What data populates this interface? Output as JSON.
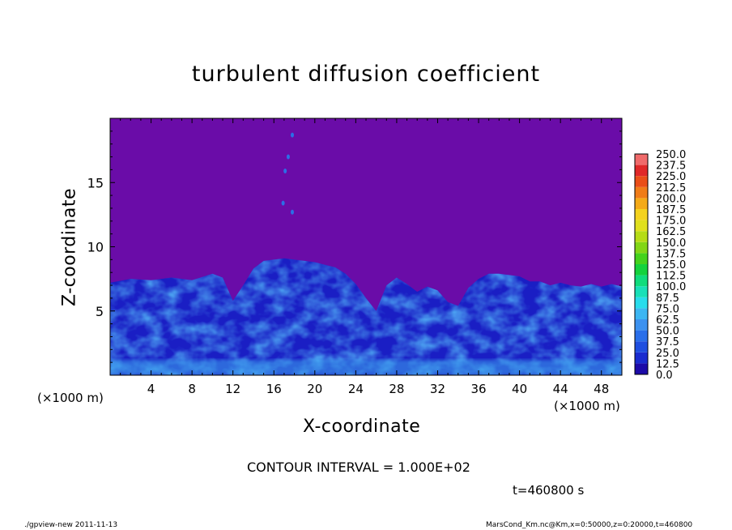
{
  "chart_data": {
    "type": "heatmap",
    "title": "turbulent diffusion coefficient",
    "xlabel": "X-coordinate",
    "ylabel": "Z-coordinate",
    "xunit": "(×1000 m)",
    "xunit_right": "(×1000 m)",
    "xlim": [
      0,
      50
    ],
    "ylim": [
      0,
      20
    ],
    "xticks": [
      4,
      8,
      12,
      16,
      20,
      24,
      28,
      32,
      36,
      40,
      44,
      48
    ],
    "yticks": [
      5,
      10,
      15
    ],
    "contour_interval": "CONTOUR INTERVAL = 1.000E+02",
    "time_label": "t=460800 s",
    "colorbar": {
      "levels": [
        "0.0",
        "12.5",
        "25.0",
        "37.5",
        "50.0",
        "62.5",
        "75.0",
        "87.5",
        "100.0",
        "112.5",
        "125.0",
        "137.5",
        "150.0",
        "162.5",
        "175.0",
        "187.5",
        "200.0",
        "212.5",
        "225.0",
        "237.5",
        "250.0"
      ],
      "colors": [
        "#1d0ba8",
        "#1a2ccf",
        "#1f4fe0",
        "#2a6fea",
        "#3c92f0",
        "#3cb6f2",
        "#28dcec",
        "#18e0b8",
        "#10dc7c",
        "#14d23c",
        "#44d21c",
        "#82d616",
        "#b6dc16",
        "#e0e01e",
        "#f4d21e",
        "#f4aa18",
        "#f07c18",
        "#ea4e18",
        "#e02828",
        "#f06a6a"
      ],
      "background_color": "#6a0ca8"
    },
    "boundary_layer_top_km": [
      [
        0,
        7.2
      ],
      [
        2,
        7.5
      ],
      [
        4,
        7.4
      ],
      [
        6,
        7.6
      ],
      [
        8,
        7.4
      ],
      [
        10,
        7.9
      ],
      [
        11,
        7.6
      ],
      [
        12,
        5.8
      ],
      [
        13,
        7.0
      ],
      [
        14,
        8.3
      ],
      [
        15,
        8.9
      ],
      [
        16,
        9.0
      ],
      [
        17,
        9.1
      ],
      [
        18,
        9.0
      ],
      [
        19,
        8.9
      ],
      [
        20,
        8.8
      ],
      [
        21,
        8.6
      ],
      [
        22,
        8.4
      ],
      [
        23,
        7.9
      ],
      [
        24,
        7.1
      ],
      [
        25,
        6.0
      ],
      [
        26,
        5.0
      ],
      [
        27,
        7.0
      ],
      [
        28,
        7.6
      ],
      [
        29,
        7.1
      ],
      [
        30,
        6.5
      ],
      [
        31,
        6.9
      ],
      [
        32,
        6.6
      ],
      [
        33,
        5.7
      ],
      [
        34,
        5.4
      ],
      [
        35,
        6.8
      ],
      [
        36,
        7.5
      ],
      [
        37,
        7.9
      ],
      [
        38,
        7.9
      ],
      [
        39,
        7.8
      ],
      [
        40,
        7.7
      ],
      [
        41,
        7.3
      ],
      [
        42,
        7.3
      ],
      [
        43,
        7.0
      ],
      [
        44,
        7.2
      ],
      [
        45,
        7.0
      ],
      [
        46,
        6.9
      ],
      [
        47,
        7.1
      ],
      [
        48,
        6.9
      ],
      [
        49,
        7.1
      ],
      [
        50,
        6.9
      ]
    ],
    "isolated_patches_km": [
      [
        17.8,
        18.7
      ],
      [
        17.4,
        17.0
      ],
      [
        17.1,
        15.9
      ],
      [
        16.9,
        13.4
      ],
      [
        17.8,
        12.7
      ]
    ]
  },
  "footer": {
    "left": "./gpview-new   2011-11-13",
    "right": "MarsCond_Km.nc@Km,x=0:50000,z=0:20000,t=460800"
  }
}
